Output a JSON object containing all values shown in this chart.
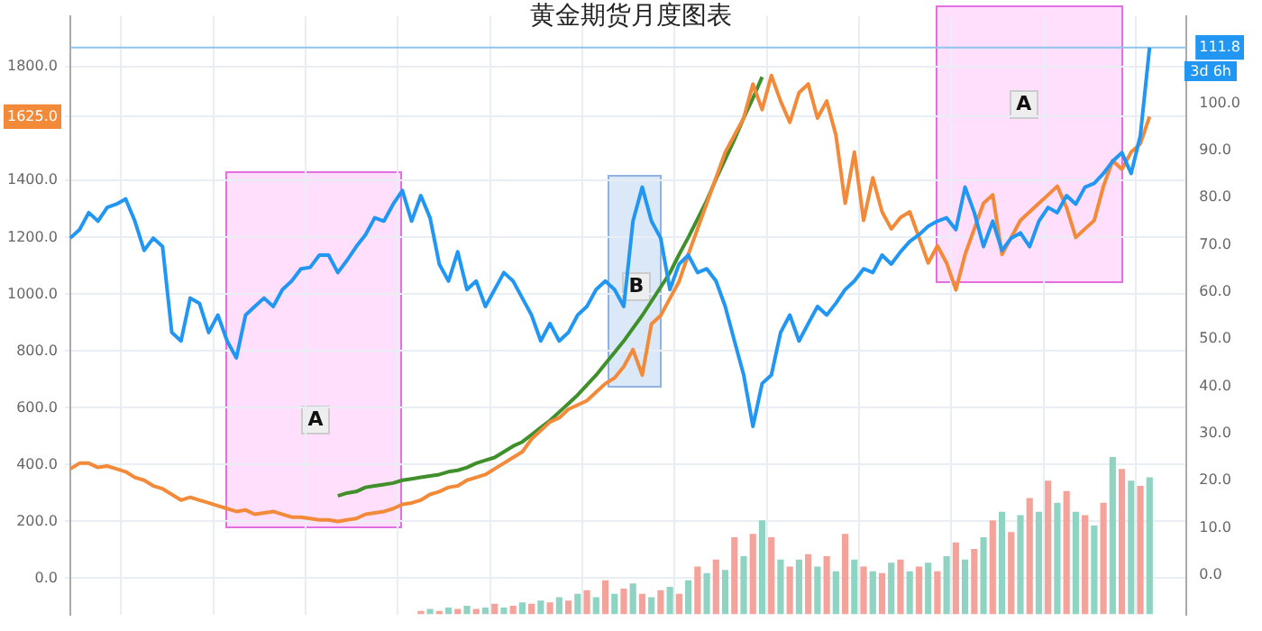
{
  "chart_data": {
    "type": "line",
    "title": "黄金期货月度图表",
    "categories": [
      null,
      null,
      null,
      null,
      null,
      null,
      null,
      null,
      null,
      null,
      null,
      null,
      null,
      null,
      null,
      null,
      null,
      null,
      null,
      null,
      null,
      null,
      null,
      null,
      null,
      null,
      null,
      null,
      null,
      null,
      null,
      null,
      null,
      null,
      null,
      null,
      null,
      null,
      null,
      null,
      null,
      null,
      null,
      null,
      null,
      null,
      null,
      null,
      null,
      null,
      null,
      null,
      null,
      null,
      null,
      null,
      null,
      null,
      null,
      null,
      null,
      null,
      null,
      null,
      null,
      null,
      null,
      null,
      null,
      null,
      null,
      null,
      null,
      null,
      null,
      null,
      null,
      null,
      null,
      null,
      null,
      null,
      null,
      null,
      null,
      null,
      null,
      null,
      null,
      null,
      null,
      null,
      null,
      null,
      null,
      null,
      null,
      null,
      null,
      null,
      null,
      null,
      null,
      null,
      null,
      null,
      null,
      null,
      null,
      null,
      null,
      null,
      null,
      null,
      null,
      null,
      null,
      null,
      null,
      null,
      null,
      null
    ],
    "series": [
      {
        "axis": "y2",
        "color": "#2196f3",
        "values": [
          71.4,
          73.2,
          76.8,
          75.0,
          77.9,
          78.6,
          79.7,
          75.0,
          68.8,
          71.4,
          69.6,
          51.4,
          49.6,
          58.7,
          57.6,
          51.4,
          55.1,
          49.6,
          46.0,
          55.1,
          56.9,
          58.7,
          56.9,
          60.5,
          62.3,
          64.9,
          65.2,
          67.8,
          67.8,
          64.1,
          66.7,
          69.6,
          72.1,
          75.7,
          75.0,
          78.6,
          81.5,
          75.0,
          80.4,
          75.7,
          65.9,
          62.3,
          68.5,
          60.5,
          62.3,
          56.9,
          60.5,
          64.1,
          62.3,
          58.7,
          55.1,
          49.6,
          53.3,
          49.6,
          51.4,
          55.1,
          56.9,
          60.5,
          62.3,
          60.5,
          56.9,
          75.0,
          82.2,
          75.0,
          71.4,
          60.5,
          65.9,
          67.8,
          64.1,
          64.9,
          62.3,
          56.9,
          49.6,
          42.4,
          31.5,
          40.6,
          42.4,
          51.4,
          55.1,
          49.6,
          53.3,
          56.9,
          55.1,
          57.6,
          60.5,
          62.3,
          64.9,
          64.1,
          67.8,
          65.9,
          68.5,
          70.7,
          72.1,
          73.9,
          75.0,
          75.7,
          73.2,
          82.2,
          76.8,
          69.6,
          75.0,
          68.8,
          71.4,
          72.5,
          69.6,
          75.0,
          77.9,
          76.8,
          80.4,
          78.6,
          82.2,
          83.0,
          85.1,
          87.7,
          89.5,
          85.1,
          93.1,
          111.8,
          null,
          null,
          null,
          null
        ]
      },
      {
        "axis": "y",
        "color": "#f28a3a",
        "values": [
          385,
          405,
          405,
          390,
          395,
          385,
          375,
          355,
          345,
          325,
          315,
          295,
          275,
          285,
          275,
          265,
          255,
          245,
          235,
          240,
          225,
          230,
          235,
          225,
          215,
          215,
          210,
          205,
          205,
          200,
          205,
          210,
          225,
          230,
          235,
          245,
          260,
          265,
          275,
          295,
          305,
          320,
          325,
          345,
          355,
          365,
          385,
          405,
          425,
          445,
          490,
          520,
          550,
          565,
          595,
          610,
          625,
          655,
          685,
          705,
          745,
          805,
          715,
          895,
          925,
          985,
          1045,
          1140,
          1230,
          1320,
          1410,
          1500,
          1560,
          1620,
          1740,
          1650,
          1770,
          1680,
          1605,
          1710,
          1740,
          1620,
          1680,
          1560,
          1320,
          1500,
          1260,
          1410,
          1290,
          1230,
          1270,
          1290,
          1200,
          1110,
          1170,
          1110,
          1015,
          1140,
          1230,
          1320,
          1350,
          1140,
          1200,
          1260,
          1290,
          1320,
          1350,
          1380,
          1305,
          1200,
          1230,
          1260,
          1380,
          1470,
          1440,
          1500,
          1530,
          1625,
          null,
          null,
          null,
          null
        ]
      },
      {
        "axis": "y",
        "color": "#3f8f2a",
        "values": [
          null,
          null,
          null,
          null,
          null,
          null,
          null,
          null,
          null,
          null,
          null,
          null,
          null,
          null,
          null,
          null,
          null,
          null,
          null,
          null,
          null,
          null,
          null,
          null,
          null,
          null,
          null,
          null,
          null,
          290,
          300,
          305,
          320,
          325,
          330,
          335,
          345,
          350,
          355,
          360,
          365,
          375,
          380,
          390,
          405,
          415,
          425,
          445,
          465,
          480,
          505,
          530,
          555,
          585,
          615,
          645,
          680,
          715,
          755,
          795,
          835,
          880,
          925,
          975,
          1025,
          1075,
          1140,
          1200,
          1265,
          1330,
          1405,
          1475,
          1545,
          1620,
          1690,
          1765,
          null,
          null,
          null,
          null,
          null,
          null,
          null,
          null,
          null,
          null,
          null,
          null,
          null,
          null,
          null,
          null,
          null,
          null,
          null,
          null,
          null,
          null,
          null,
          null,
          null,
          null,
          null,
          null,
          null,
          null,
          null,
          null,
          null,
          null,
          null,
          null,
          null,
          null,
          null,
          null,
          null,
          null,
          null,
          null,
          null,
          null
        ]
      },
      {
        "type": "bar",
        "axis": "y2",
        "values": [
          null,
          null,
          null,
          null,
          null,
          null,
          null,
          null,
          null,
          null,
          null,
          null,
          null,
          null,
          null,
          null,
          null,
          null,
          null,
          null,
          null,
          null,
          null,
          null,
          null,
          null,
          null,
          null,
          null,
          null,
          null,
          null,
          null,
          null,
          null,
          null,
          null,
          null,
          0.7,
          1.1,
          0.7,
          1.4,
          1.1,
          1.8,
          1.1,
          1.4,
          2.2,
          1.4,
          1.8,
          2.5,
          2.2,
          2.9,
          2.5,
          3.6,
          2.9,
          4.3,
          5.1,
          3.6,
          7.2,
          4.3,
          5.4,
          6.5,
          4.3,
          3.6,
          5.1,
          5.8,
          4.3,
          7.2,
          10.1,
          8.7,
          11.6,
          9.4,
          16.3,
          12.3,
          17.0,
          19.9,
          16.3,
          11.6,
          10.1,
          11.6,
          12.7,
          10.1,
          12.3,
          9.1,
          17.0,
          11.6,
          10.1,
          9.1,
          8.7,
          10.9,
          11.6,
          9.1,
          10.1,
          10.9,
          9.1,
          12.3,
          15.2,
          11.6,
          13.8,
          16.3,
          19.9,
          21.7,
          17.4,
          21.0,
          24.6,
          21.7,
          28.3,
          23.6,
          26.1,
          21.7,
          21.0,
          18.8,
          23.6,
          33.3,
          30.8,
          28.3,
          27.2,
          29.0,
          null,
          null,
          null,
          null
        ],
        "base": [
          null,
          null,
          null,
          null,
          null,
          null,
          null,
          null,
          null,
          null,
          null,
          null,
          null,
          null,
          null,
          null,
          null,
          null,
          null,
          null,
          null,
          null,
          null,
          null,
          null,
          null,
          null,
          null,
          null,
          null,
          null,
          null,
          null,
          null,
          null,
          null,
          null,
          null,
          -8.3,
          -8.3,
          -8.3,
          -8.3,
          -8.3,
          -8.3,
          -8.3,
          -8.3,
          -8.3,
          -8.3,
          -8.3,
          -8.3,
          -8.3,
          -8.3,
          -8.3,
          -8.3,
          -8.3,
          -8.3,
          -8.3,
          -8.3,
          -8.3,
          -8.3,
          -8.3,
          -8.3,
          -8.3,
          -8.3,
          -8.3,
          -8.3,
          -8.3,
          -8.3,
          -8.3,
          -8.3,
          -8.3,
          -8.3,
          -8.3,
          -8.3,
          -8.3,
          -8.3,
          -8.3,
          -8.3,
          -8.3,
          -8.3,
          -8.3,
          -8.3,
          -8.3,
          -8.3,
          -8.3,
          -8.3,
          -8.3,
          -8.3,
          -8.3,
          -8.3,
          -8.3,
          -8.3,
          -8.3,
          -8.3,
          -8.3,
          -8.3,
          -8.3,
          -8.3,
          -8.3,
          -8.3,
          -8.3,
          -8.3,
          -8.3,
          -8.3,
          -8.3,
          -8.3,
          -8.3,
          -8.3,
          -8.3,
          -8.3,
          -8.3,
          -8.3,
          -8.3,
          -8.3,
          -8.3,
          -8.3,
          -8.3,
          -8.3,
          null,
          null,
          null,
          null
        ],
        "colors": [
          null,
          null,
          null,
          null,
          null,
          null,
          null,
          null,
          null,
          null,
          null,
          null,
          null,
          null,
          null,
          null,
          null,
          null,
          null,
          null,
          null,
          null,
          null,
          null,
          null,
          null,
          null,
          null,
          null,
          null,
          null,
          null,
          null,
          null,
          null,
          null,
          null,
          null,
          "#f4a29a",
          "#8fd3c2",
          "#f4a29a",
          "#8fd3c2",
          "#f4a29a",
          "#8fd3c2",
          "#f4a29a",
          "#8fd3c2",
          "#f4a29a",
          "#8fd3c2",
          "#f4a29a",
          "#8fd3c2",
          "#f4a29a",
          "#8fd3c2",
          "#f4a29a",
          "#8fd3c2",
          "#f4a29a",
          "#8fd3c2",
          "#f4a29a",
          "#8fd3c2",
          "#f4a29a",
          "#8fd3c2",
          "#f4a29a",
          "#8fd3c2",
          "#f4a29a",
          "#8fd3c2",
          "#f4a29a",
          "#8fd3c2",
          "#f4a29a",
          "#8fd3c2",
          "#f4a29a",
          "#8fd3c2",
          "#f4a29a",
          "#8fd3c2",
          "#f4a29a",
          "#8fd3c2",
          "#f4a29a",
          "#8fd3c2",
          "#f4a29a",
          "#8fd3c2",
          "#f4a29a",
          "#8fd3c2",
          "#f4a29a",
          "#8fd3c2",
          "#f4a29a",
          "#8fd3c2",
          "#f4a29a",
          "#8fd3c2",
          "#f4a29a",
          "#8fd3c2",
          "#f4a29a",
          "#8fd3c2",
          "#f4a29a",
          "#8fd3c2",
          "#f4a29a",
          "#8fd3c2",
          "#f4a29a",
          "#8fd3c2",
          "#f4a29a",
          "#8fd3c2",
          "#f4a29a",
          "#8fd3c2",
          "#f4a29a",
          "#8fd3c2",
          "#f4a29a",
          "#8fd3c2",
          "#f4a29a",
          "#8fd3c2",
          "#f4a29a",
          "#8fd3c2",
          "#f4a29a",
          "#8fd3c2",
          "#f4a29a",
          "#8fd3c2",
          "#f4a29a",
          "#8fd3c2",
          "#f4a29a",
          "#8fd3c2",
          "#f4a29a",
          "#8fd3c2",
          null,
          null,
          null,
          null
        ]
      }
    ],
    "ylim": [
      -130,
      1980
    ],
    "yticks": [
      {
        "value": 0,
        "label": "0.0"
      },
      {
        "value": 200,
        "label": "200.0"
      },
      {
        "value": 400,
        "label": "400.0"
      },
      {
        "value": 600,
        "label": "600.0"
      },
      {
        "value": 800,
        "label": "800.0"
      },
      {
        "value": 1000,
        "label": "1000.0"
      },
      {
        "value": 1200,
        "label": "1200.0"
      },
      {
        "value": 1400,
        "label": "1400.0"
      },
      {
        "value": 1625,
        "label": "1625.0"
      },
      {
        "value": 1800,
        "label": "1800.0"
      }
    ],
    "y2lim": [
      -8.5,
      118.5
    ],
    "y2ticks": [
      {
        "value": 0,
        "label": "0.0"
      },
      {
        "value": 10,
        "label": "10.0"
      },
      {
        "value": 20,
        "label": "20.0"
      },
      {
        "value": 30,
        "label": "30.0"
      },
      {
        "value": 40,
        "label": "40.0"
      },
      {
        "value": 50,
        "label": "50.0"
      },
      {
        "value": 60,
        "label": "60.0"
      },
      {
        "value": 70,
        "label": "70.0"
      },
      {
        "value": 80,
        "label": "80.0"
      },
      {
        "value": 90,
        "label": "90.0"
      },
      {
        "value": 100,
        "label": "100.0"
      },
      {
        "value": 111.8,
        "label": "111.8"
      }
    ],
    "ref_lines": [
      {
        "axis": "y2",
        "value": 111.8,
        "color": "#90c4ee",
        "line_style": "solid"
      }
    ],
    "annotations": [
      "A",
      "B",
      "A",
      "3d 6h"
    ],
    "grid": true,
    "legend": false,
    "marker": "none",
    "line_style": "solid"
  }
}
